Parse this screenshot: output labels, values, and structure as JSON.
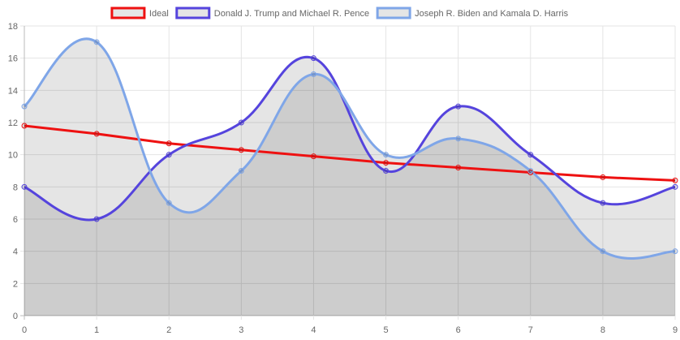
{
  "chart_data": {
    "type": "line",
    "x": [
      0,
      1,
      2,
      3,
      4,
      5,
      6,
      7,
      8,
      9
    ],
    "xlim": [
      0,
      9
    ],
    "ylim": [
      0,
      18
    ],
    "y_ticks": [
      0,
      2,
      4,
      6,
      8,
      10,
      12,
      14,
      16,
      18
    ],
    "grid": true,
    "legend_position": "top-center",
    "series": [
      {
        "name": "Ideal",
        "values": [
          11.8,
          11.3,
          10.7,
          10.3,
          9.9,
          9.5,
          9.2,
          8.9,
          8.6,
          8.4
        ],
        "color": "#ee1111",
        "fill": false,
        "smooth": false
      },
      {
        "name": "Donald J. Trump and Michael R. Pence",
        "values": [
          8,
          6,
          10,
          12,
          16,
          9,
          13,
          10,
          7,
          8
        ],
        "color": "#5544dd",
        "fill": true,
        "smooth": true
      },
      {
        "name": "Joseph R. Biden and Kamala D. Harris",
        "values": [
          13,
          17,
          7,
          9,
          15,
          10,
          11,
          9,
          4,
          4
        ],
        "color": "#7fa6e8",
        "fill": true,
        "smooth": true
      }
    ]
  }
}
